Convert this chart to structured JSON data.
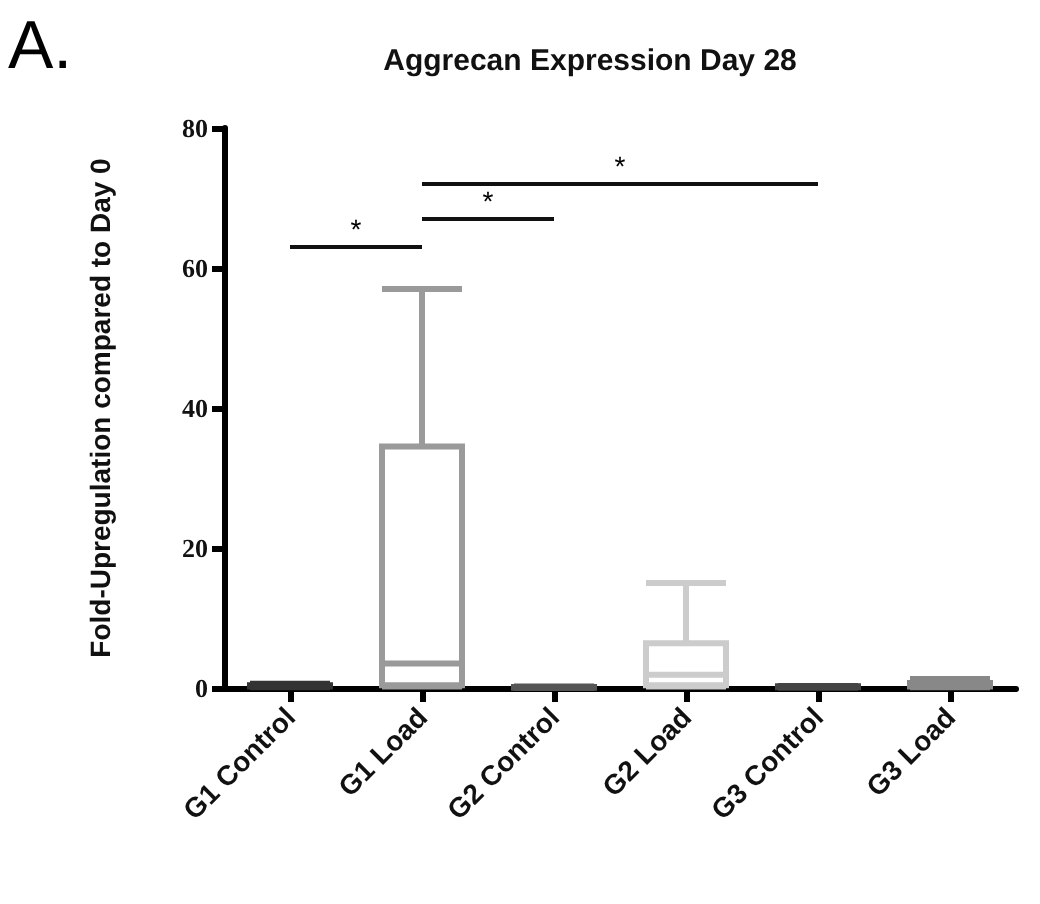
{
  "chart_data": {
    "type": "box",
    "title": "Aggrecan Expression Day 28",
    "ylabel": "Fold-Upregulation compared to Day 0",
    "categories": [
      "G1 Control",
      "G1 Load",
      "G2 Control",
      "G2 Load",
      "G3 Control",
      "G3 Load"
    ],
    "boxes": [
      {
        "low": 0.1,
        "q1": 0.2,
        "median": 0.3,
        "q3": 0.4,
        "high": 0.6
      },
      {
        "low": 0.2,
        "q1": 0.4,
        "median": 3.5,
        "q3": 34.5,
        "high": 57
      },
      {
        "low": 0,
        "q1": 0.05,
        "median": 0.1,
        "q3": 0.15,
        "high": 0.2
      },
      {
        "low": 0.2,
        "q1": 0.4,
        "median": 1.9,
        "q3": 6.4,
        "high": 15
      },
      {
        "low": 0.05,
        "q1": 0.1,
        "median": 0.2,
        "q3": 0.25,
        "high": 0.3
      },
      {
        "low": 0.1,
        "q1": 0.2,
        "median": 0.4,
        "q3": 0.7,
        "high": 1.3
      }
    ],
    "colors": [
      "#333333",
      "#9a9a9a",
      "#555555",
      "#cccccc",
      "#444444",
      "#888888"
    ],
    "ylim": [
      0,
      80
    ],
    "yticks": [
      0,
      20,
      40,
      60,
      80
    ],
    "grid": false,
    "annotations": [
      "A.",
      "*",
      "*",
      "*"
    ]
  }
}
